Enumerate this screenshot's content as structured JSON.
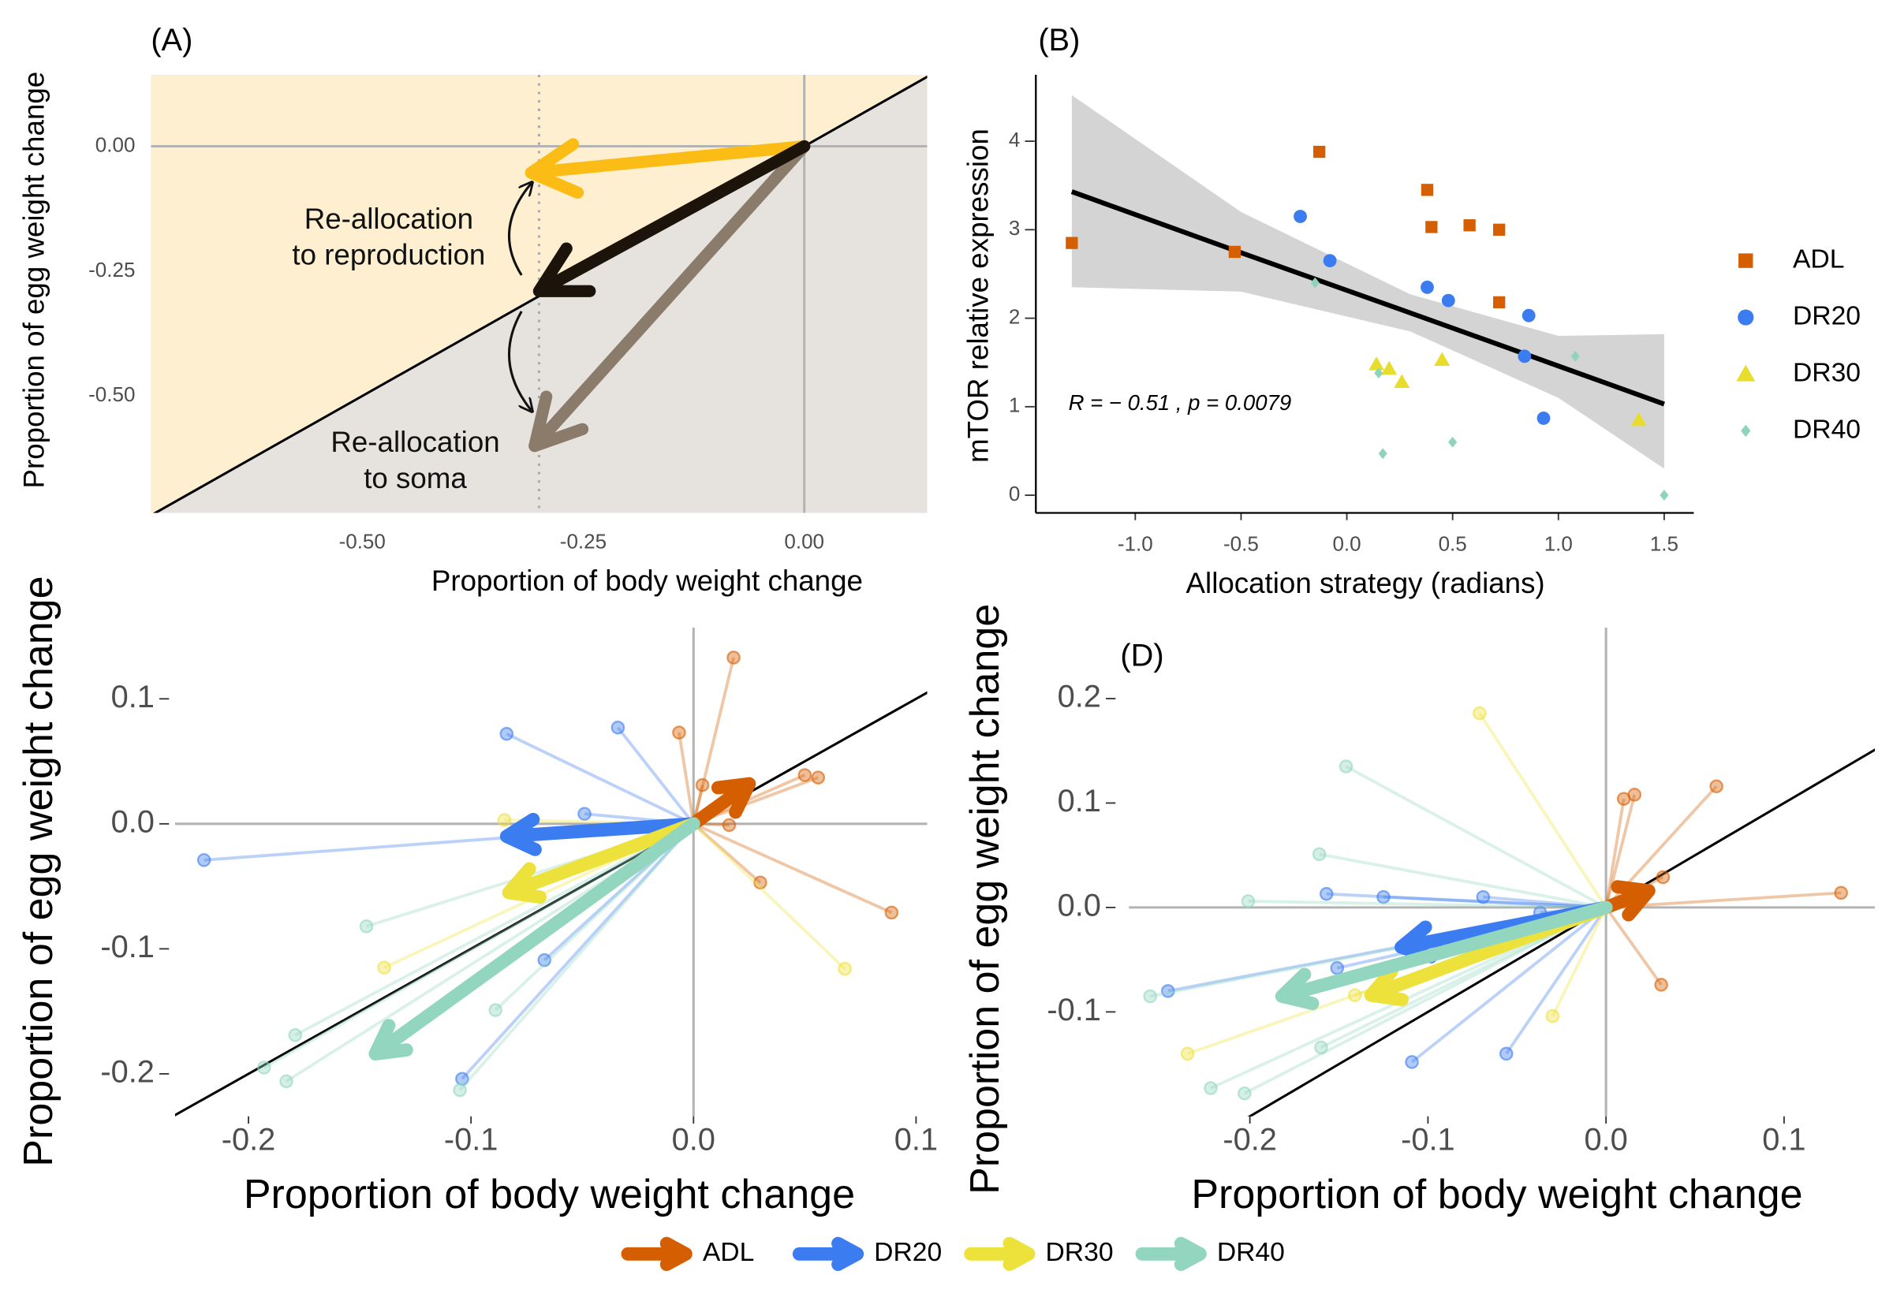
{
  "chart_data": [
    {
      "type": "schematic",
      "title": "(A)",
      "xlabel": "Proportion of body weight change",
      "ylabel": "Proportion of egg weight change",
      "xlim": [
        -0.739,
        0.139
      ],
      "ylim": [
        -0.734,
        0.143
      ],
      "xticks": [
        {
          "value": -0.5,
          "label": "-0.50"
        },
        {
          "value": -0.25,
          "label": "-0.25"
        },
        {
          "value": 0,
          "label": "0.00"
        }
      ],
      "yticks": [
        {
          "value": 0,
          "label": "0.00"
        },
        {
          "value": -0.25,
          "label": "-0.25"
        },
        {
          "value": -0.5,
          "label": "-0.50"
        }
      ],
      "zero_lines": true,
      "identity_line": true,
      "vline": -0.3,
      "above_color": "#fdefcf",
      "below_color": "#e6e3df",
      "arrows": [
        {
          "color": "#fbbc16",
          "x": -0.309,
          "y": -0.053
        },
        {
          "color": "#8a7b6b",
          "x": -0.305,
          "y": -0.6
        },
        {
          "color": "#1c140a",
          "x": -0.3,
          "y": -0.29
        }
      ],
      "annotations": [
        [
          "Re-allocation",
          "to reproduction"
        ],
        [
          "Re-allocation",
          "to soma"
        ]
      ]
    },
    {
      "type": "scatter",
      "title": "(B)",
      "xlabel": "Allocation strategy (radians)",
      "ylabel": "mTOR relative expression",
      "xlim": [
        -1.47,
        1.64
      ],
      "ylim": [
        -0.2,
        4.75
      ],
      "xticks": [
        {
          "value": -1,
          "label": "-1.0"
        },
        -0.5,
        {
          "value": 0,
          "label": "0.0"
        },
        0.5,
        {
          "value": 1,
          "label": "1.0"
        },
        1.5
      ],
      "yticks": [
        0,
        1,
        2,
        3,
        4
      ],
      "annotation": "R = − 0.51 , p = 0.0079",
      "fit": {
        "x": [
          -1.3,
          -0.5,
          0.3,
          1.0,
          1.5
        ],
        "y": [
          3.43,
          2.74,
          2.06,
          1.46,
          1.03
        ],
        "lower": [
          2.35,
          2.3,
          1.85,
          1.1,
          0.3
        ],
        "upper": [
          4.52,
          3.2,
          2.27,
          1.8,
          1.82
        ]
      },
      "series": [
        {
          "name": "ADL",
          "color": "#d55e00",
          "shape": "square",
          "x": [
            -1.3,
            -0.53,
            -0.13,
            0.38,
            0.4,
            0.58,
            0.72,
            0.72
          ],
          "y": [
            2.85,
            2.75,
            3.88,
            3.45,
            3.03,
            3.05,
            3.0,
            2.18
          ]
        },
        {
          "name": "DR20",
          "color": "#3b7cf0",
          "shape": "circle",
          "x": [
            -0.22,
            -0.08,
            0.38,
            0.48,
            0.86,
            0.84,
            0.93
          ],
          "y": [
            3.15,
            2.65,
            2.35,
            2.2,
            2.03,
            1.57,
            0.87
          ]
        },
        {
          "name": "DR30",
          "color": "#e8dc2c",
          "shape": "triangle",
          "x": [
            0.14,
            0.2,
            0.26,
            0.45,
            1.38
          ],
          "y": [
            1.48,
            1.43,
            1.28,
            1.53,
            0.85
          ]
        },
        {
          "name": "DR40",
          "color": "#8fd3bb",
          "shape": "diamond",
          "x": [
            -0.15,
            0.15,
            0.17,
            0.5,
            1.08,
            1.5
          ],
          "y": [
            2.4,
            1.38,
            0.47,
            0.6,
            1.57,
            0
          ]
        }
      ]
    },
    {
      "type": "vector",
      "xlabel": "Proportion of body weight change",
      "ylabel": "Proportion of egg weight change",
      "xlim": [
        -0.233,
        0.105
      ],
      "ylim": [
        -0.234,
        0.157
      ],
      "xticks": [
        -0.2,
        -0.1,
        {
          "value": 0,
          "label": "0.0"
        },
        0.1
      ],
      "yticks": [
        0.1,
        {
          "value": 0,
          "label": "0.0"
        },
        -0.1,
        -0.2
      ],
      "zero_lines": true,
      "identity_line": true,
      "series": [
        {
          "name": "ADL",
          "color": "#d55e00",
          "x": [
            0.018,
            -0.0065,
            0.004,
            0.016,
            0.05,
            0.056,
            0.03,
            0.089
          ],
          "y": [
            0.133,
            0.073,
            0.031,
            -0.001,
            0.039,
            0.037,
            -0.047,
            -0.071
          ],
          "mean_x": 0.025,
          "mean_y": 0.032
        },
        {
          "name": "DR20",
          "color": "#3b7cf0",
          "x": [
            -0.084,
            -0.034,
            -0.049,
            -0.22,
            -0.067,
            -0.104
          ],
          "y": [
            0.072,
            0.077,
            0.008,
            -0.029,
            -0.109,
            -0.204
          ],
          "mean_x": -0.084,
          "mean_y": -0.01
        },
        {
          "name": "DR30",
          "color": "#ede13c",
          "x": [
            -0.085,
            -0.139,
            0.068
          ],
          "y": [
            0.003,
            -0.115,
            -0.116
          ],
          "mean_x": -0.083,
          "mean_y": -0.055
        },
        {
          "name": "DR40",
          "color": "#93d6bf",
          "x": [
            -0.147,
            -0.179,
            -0.183,
            -0.089,
            -0.105,
            -0.193
          ],
          "y": [
            -0.082,
            -0.169,
            -0.206,
            -0.149,
            -0.213,
            -0.195
          ],
          "mean_x": -0.143,
          "mean_y": -0.184
        }
      ]
    },
    {
      "type": "vector",
      "title": "(D)",
      "xlabel": "Proportion of body weight change",
      "ylabel": "Proportion of egg weight change",
      "xlim": [
        -0.268,
        0.151
      ],
      "ylim": [
        -0.2,
        0.268
      ],
      "xticks": [
        -0.2,
        -0.1,
        {
          "value": 0,
          "label": "0.0"
        },
        0.1
      ],
      "yticks": [
        0.2,
        0.1,
        {
          "value": 0,
          "label": "0.0"
        },
        -0.1
      ],
      "zero_lines": true,
      "identity_line": true,
      "series": [
        {
          "color": "#d55e00",
          "x": [
            0.01,
            0.016,
            0.062,
            0.032,
            0.132,
            0.031,
            -0.061
          ],
          "y": [
            0.104,
            0.108,
            0.116,
            0.029,
            0.014,
            -0.074,
            -0.021
          ],
          "mean_x": 0.024,
          "mean_y": 0.016
        },
        {
          "color": "#3b7cf0",
          "x": [
            -0.157,
            -0.125,
            -0.069,
            -0.037,
            -0.151,
            -0.246,
            -0.109,
            -0.056
          ],
          "y": [
            0.013,
            0.01,
            0.01,
            -0.005,
            -0.058,
            -0.08,
            -0.148,
            -0.14
          ],
          "mean_x": -0.115,
          "mean_y": -0.038
        },
        {
          "color": "#ede13c",
          "x": [
            -0.071,
            -0.03,
            -0.235,
            -0.141
          ],
          "y": [
            0.186,
            -0.104,
            -0.14,
            -0.084
          ],
          "mean_x": -0.132,
          "mean_y": -0.084
        },
        {
          "color": "#93d6bf",
          "x": [
            -0.146,
            -0.161,
            -0.201,
            -0.256,
            -0.16,
            -0.222,
            -0.203
          ],
          "y": [
            0.135,
            0.051,
            0.006,
            -0.085,
            -0.134,
            -0.173,
            -0.178
          ],
          "mean_x": -0.182,
          "mean_y": -0.085
        }
      ]
    }
  ]
}
